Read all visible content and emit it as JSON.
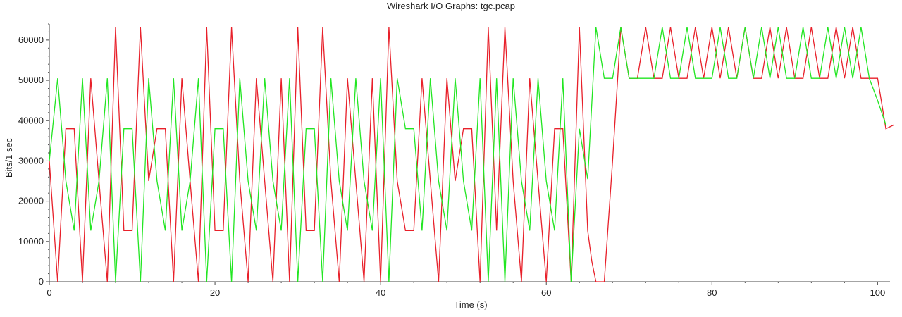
{
  "window": {
    "title": "Wireshark I/O Graphs: tgc.pcap"
  },
  "chart_data": {
    "type": "line",
    "title": "Wireshark I/O Graphs: tgc.pcap",
    "xlabel": "Time (s)",
    "ylabel": "Bits/1 sec",
    "xlim": [
      0,
      101.5
    ],
    "ylim": [
      0,
      64000
    ],
    "x_ticks": [
      0,
      20,
      40,
      60,
      80,
      100
    ],
    "y_ticks": [
      0,
      10000,
      20000,
      30000,
      40000,
      50000,
      60000
    ],
    "grid": false,
    "legend": "none",
    "series": [
      {
        "color": "#e8202a",
        "points": [
          [
            0,
            30000
          ],
          [
            1,
            0
          ],
          [
            2,
            38000
          ],
          [
            3,
            38000
          ],
          [
            4,
            0
          ],
          [
            5,
            50500
          ],
          [
            6,
            25000
          ],
          [
            7,
            0
          ],
          [
            8,
            63200
          ],
          [
            9,
            12700
          ],
          [
            10,
            12700
          ],
          [
            11,
            63200
          ],
          [
            12,
            25000
          ],
          [
            13,
            38000
          ],
          [
            14,
            38000
          ],
          [
            15,
            0
          ],
          [
            16,
            50500
          ],
          [
            17,
            25000
          ],
          [
            18,
            0
          ],
          [
            19,
            63200
          ],
          [
            20,
            12700
          ],
          [
            21,
            12700
          ],
          [
            22,
            63200
          ],
          [
            23,
            25000
          ],
          [
            24,
            0
          ],
          [
            25,
            50500
          ],
          [
            26,
            25000
          ],
          [
            27,
            0
          ],
          [
            28,
            50500
          ],
          [
            29,
            0
          ],
          [
            30,
            63200
          ],
          [
            31,
            12700
          ],
          [
            32,
            12700
          ],
          [
            33,
            63200
          ],
          [
            34,
            25000
          ],
          [
            35,
            0
          ],
          [
            36,
            50500
          ],
          [
            37,
            25000
          ],
          [
            38,
            0
          ],
          [
            39,
            50500
          ],
          [
            40,
            0
          ],
          [
            41,
            63200
          ],
          [
            42,
            25000
          ],
          [
            43,
            12700
          ],
          [
            44,
            12700
          ],
          [
            45,
            50500
          ],
          [
            46,
            25000
          ],
          [
            47,
            0
          ],
          [
            48,
            50500
          ],
          [
            49,
            25000
          ],
          [
            50,
            38000
          ],
          [
            51,
            38000
          ],
          [
            52,
            0
          ],
          [
            53,
            63200
          ],
          [
            54,
            12700
          ],
          [
            55,
            63200
          ],
          [
            56,
            25000
          ],
          [
            57,
            0
          ],
          [
            58,
            50500
          ],
          [
            59,
            25000
          ],
          [
            60,
            0
          ],
          [
            61,
            38000
          ],
          [
            62,
            38000
          ],
          [
            63,
            0
          ],
          [
            64,
            63200
          ],
          [
            65,
            12700
          ],
          [
            65.5,
            5000
          ],
          [
            66,
            0
          ],
          [
            67,
            0
          ],
          [
            68,
            30000
          ],
          [
            69,
            63200
          ],
          [
            70,
            50500
          ],
          [
            71,
            50500
          ],
          [
            72,
            63200
          ],
          [
            73,
            50500
          ],
          [
            74,
            50500
          ],
          [
            75,
            63200
          ],
          [
            76,
            50500
          ],
          [
            77,
            50500
          ],
          [
            78,
            63200
          ],
          [
            79,
            50500
          ],
          [
            80,
            63200
          ],
          [
            81,
            50500
          ],
          [
            82,
            63200
          ],
          [
            83,
            50500
          ],
          [
            84,
            63200
          ],
          [
            85,
            50500
          ],
          [
            86,
            50500
          ],
          [
            87,
            63200
          ],
          [
            88,
            50500
          ],
          [
            89,
            63200
          ],
          [
            90,
            50500
          ],
          [
            91,
            50500
          ],
          [
            92,
            63200
          ],
          [
            93,
            50500
          ],
          [
            94,
            50500
          ],
          [
            95,
            63200
          ],
          [
            96,
            50500
          ],
          [
            97,
            63200
          ],
          [
            98,
            50500
          ],
          [
            99,
            50500
          ],
          [
            100,
            50500
          ],
          [
            101,
            38000
          ],
          [
            102,
            39000
          ]
        ]
      },
      {
        "color": "#22e622",
        "points": [
          [
            0,
            30000
          ],
          [
            1,
            50500
          ],
          [
            2,
            25000
          ],
          [
            3,
            12700
          ],
          [
            4,
            50500
          ],
          [
            5,
            12700
          ],
          [
            6,
            25000
          ],
          [
            7,
            50500
          ],
          [
            8,
            0
          ],
          [
            9,
            38000
          ],
          [
            10,
            38000
          ],
          [
            11,
            0
          ],
          [
            12,
            50500
          ],
          [
            13,
            25000
          ],
          [
            14,
            12700
          ],
          [
            15,
            50500
          ],
          [
            16,
            12700
          ],
          [
            17,
            25000
          ],
          [
            18,
            50500
          ],
          [
            19,
            0
          ],
          [
            20,
            38000
          ],
          [
            21,
            38000
          ],
          [
            22,
            0
          ],
          [
            23,
            50500
          ],
          [
            24,
            25000
          ],
          [
            25,
            12700
          ],
          [
            26,
            50500
          ],
          [
            27,
            25000
          ],
          [
            28,
            12700
          ],
          [
            29,
            50500
          ],
          [
            30,
            0
          ],
          [
            31,
            38000
          ],
          [
            32,
            38000
          ],
          [
            33,
            0
          ],
          [
            34,
            50500
          ],
          [
            35,
            25000
          ],
          [
            36,
            12700
          ],
          [
            37,
            50500
          ],
          [
            38,
            25000
          ],
          [
            39,
            12700
          ],
          [
            40,
            50500
          ],
          [
            41,
            0
          ],
          [
            42,
            50500
          ],
          [
            43,
            38000
          ],
          [
            44,
            38000
          ],
          [
            45,
            12700
          ],
          [
            46,
            50500
          ],
          [
            47,
            25000
          ],
          [
            48,
            12700
          ],
          [
            49,
            50500
          ],
          [
            50,
            25000
          ],
          [
            51,
            12700
          ],
          [
            52,
            50500
          ],
          [
            53,
            0
          ],
          [
            54,
            50500
          ],
          [
            55,
            0
          ],
          [
            56,
            50500
          ],
          [
            57,
            25000
          ],
          [
            58,
            12700
          ],
          [
            59,
            50500
          ],
          [
            60,
            25000
          ],
          [
            61,
            12700
          ],
          [
            62,
            50500
          ],
          [
            63,
            0
          ],
          [
            64,
            38000
          ],
          [
            65,
            25500
          ],
          [
            66,
            63200
          ],
          [
            67,
            50500
          ],
          [
            68,
            50500
          ],
          [
            69,
            63200
          ],
          [
            70,
            50500
          ],
          [
            71,
            50500
          ],
          [
            72,
            50500
          ],
          [
            73,
            50500
          ],
          [
            74,
            63200
          ],
          [
            75,
            50500
          ],
          [
            76,
            50500
          ],
          [
            77,
            63200
          ],
          [
            78,
            50500
          ],
          [
            79,
            50500
          ],
          [
            80,
            50500
          ],
          [
            81,
            63200
          ],
          [
            82,
            50500
          ],
          [
            83,
            50500
          ],
          [
            84,
            63200
          ],
          [
            85,
            50500
          ],
          [
            86,
            63200
          ],
          [
            87,
            50500
          ],
          [
            88,
            63200
          ],
          [
            89,
            50500
          ],
          [
            90,
            50500
          ],
          [
            91,
            63200
          ],
          [
            92,
            50500
          ],
          [
            93,
            50500
          ],
          [
            94,
            63200
          ],
          [
            95,
            50500
          ],
          [
            96,
            63200
          ],
          [
            97,
            50500
          ],
          [
            98,
            63200
          ],
          [
            99,
            50500
          ],
          [
            100,
            45000
          ],
          [
            101,
            39000
          ]
        ]
      }
    ]
  }
}
